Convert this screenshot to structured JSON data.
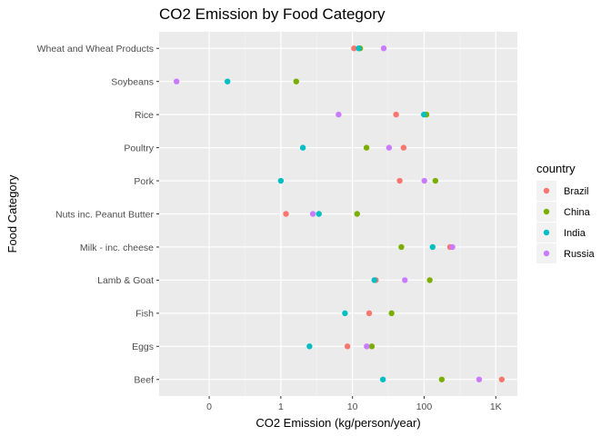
{
  "chart_data": {
    "type": "scatter",
    "title": "CO2 Emission by Food Category",
    "xlabel": "CO2 Emission (kg/person/year)",
    "ylabel": "Food Category",
    "x_scale": "log10",
    "xlim": [
      0.02,
      2000
    ],
    "x_ticks": [
      {
        "value": 0.1,
        "label": "0"
      },
      {
        "value": 1,
        "label": "1"
      },
      {
        "value": 10,
        "label": "10"
      },
      {
        "value": 100,
        "label": "100"
      },
      {
        "value": 1000,
        "label": "1K"
      }
    ],
    "categories": [
      "Beef",
      "Eggs",
      "Fish",
      "Lamb & Goat",
      "Milk - inc. cheese",
      "Nuts inc. Peanut Butter",
      "Pork",
      "Poultry",
      "Rice",
      "Soybeans",
      "Wheat and Wheat Products"
    ],
    "grid": true,
    "legend": {
      "title": "country",
      "position": "right"
    },
    "series": [
      {
        "name": "Brazil",
        "color": "#F8766D",
        "values": [
          1211.17,
          8.51,
          17.1,
          21.2,
          229.8,
          1.18,
          45.6,
          51.7,
          40.6,
          null,
          10.5
        ]
      },
      {
        "name": "China",
        "color": "#7CAE00",
        "values": [
          176.3,
          18.6,
          35.1,
          119.8,
          48.1,
          11.6,
          143.6,
          15.7,
          107.7,
          1.64,
          12.8
        ]
      },
      {
        "name": "India",
        "color": "#00BFC4",
        "values": [
          26.6,
          2.51,
          7.86,
          20.2,
          131.2,
          3.4,
          1.0,
          2.03,
          99.2,
          0.18,
          12.2
        ]
      },
      {
        "name": "Russia",
        "color": "#C77CFF",
        "values": [
          586.0,
          15.8,
          null,
          53.8,
          248.2,
          2.8,
          100.7,
          32.4,
          6.4,
          0.035,
          27.3
        ]
      }
    ]
  }
}
